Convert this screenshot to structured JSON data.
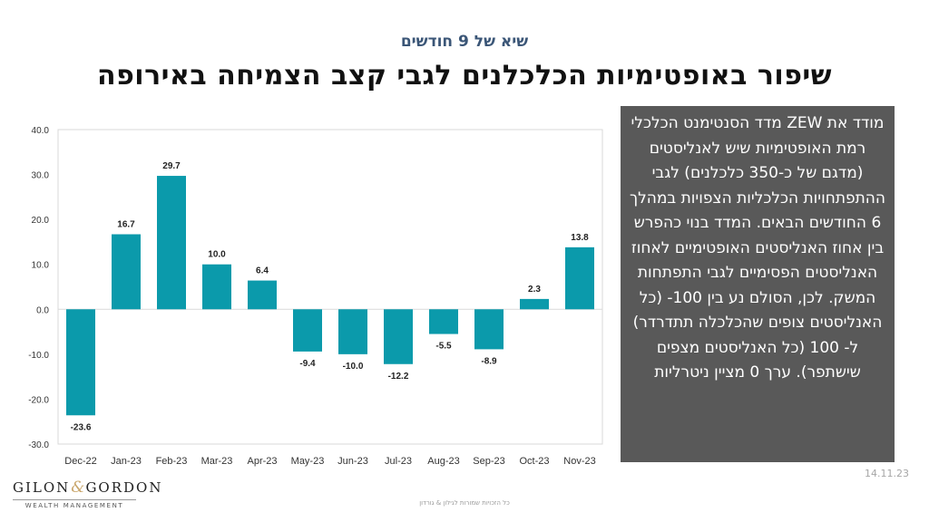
{
  "header": {
    "subtitle": "שיא של 9 חודשים",
    "title": "שיפור באופטימיות הכלכלנים לגבי קצב הצמיחה באירופה"
  },
  "info_box": {
    "text": "מודד את ZEW מדד הסנטימנט הכלכלי רמת האופטימיות שיש לאנליסטים (מדגם של כ-350 כלכלנים) לגבי ההתפתחויות הכלכליות הצפויות במהלך 6 החודשים הבאים. המדד בנוי כהפרש בין אחוז האנליסטים האופטימיים לאחוז האנליסטים הפסימיים לגבי התפתחות המשק. לכן, הסולם נע בין 100- (כל האנליסטים צופים שהכלכלה תתדרדר) ל- 100 (כל האנליסטים מצפים שישתפר). ערך 0 מציין ניטרליות"
  },
  "date": "14.11.23",
  "logo": {
    "name_left": "GILON",
    "ampersand": "&",
    "name_right": "GORDON",
    "tagline": "WEALTH MANAGEMENT"
  },
  "footer": "כל הזכויות שמורות לגילון & גורדון",
  "chart_data": {
    "type": "bar",
    "categories": [
      "Dec-22",
      "Jan-23",
      "Feb-23",
      "Mar-23",
      "Apr-23",
      "May-23",
      "Jun-23",
      "Jul-23",
      "Aug-23",
      "Sep-23",
      "Oct-23",
      "Nov-23"
    ],
    "values": [
      -23.6,
      16.7,
      29.7,
      10.0,
      6.4,
      -9.4,
      -10.0,
      -12.2,
      -5.5,
      -8.9,
      2.3,
      13.8
    ],
    "data_labels": [
      "-23.6",
      "16.7",
      "29.7",
      "10.0",
      "6.4",
      "-9.4",
      "-10.0",
      "-12.2",
      "-5.5",
      "-8.9",
      "2.3",
      "13.8"
    ],
    "yticks": [
      40,
      30,
      20,
      10,
      0,
      -10,
      -20,
      -30
    ],
    "ytick_labels": [
      "40.0",
      "30.0",
      "20.0",
      "10.0",
      "0.0",
      "-10.0",
      "-20.0",
      "-30.0"
    ],
    "ylim": [
      -30,
      40
    ],
    "bar_color": "#0b9aab",
    "grid": false,
    "legend": "none"
  }
}
